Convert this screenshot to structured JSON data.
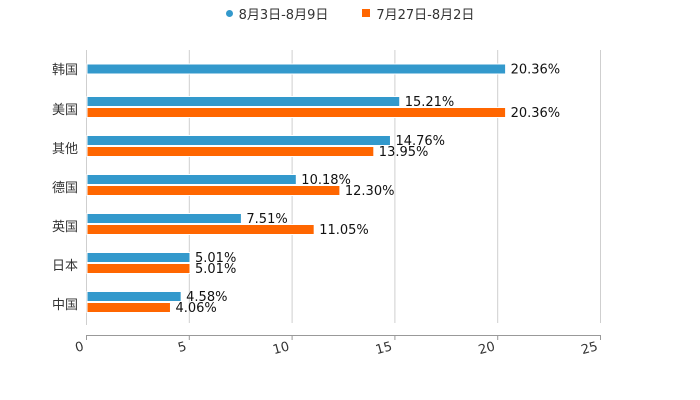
{
  "chart_data": {
    "type": "bar",
    "orientation": "horizontal",
    "categories": [
      "韩国",
      "美国",
      "其他",
      "德国",
      "英国",
      "日本",
      "中国"
    ],
    "series": [
      {
        "name": "8月3日-8月9日",
        "color": "#3399cc",
        "values": [
          20.36,
          15.21,
          14.76,
          10.18,
          7.51,
          5.01,
          4.58
        ],
        "labels": [
          "20.36%",
          "15.21%",
          "14.76%",
          "10.18%",
          "7.51%",
          "5.01%",
          "4.58%"
        ]
      },
      {
        "name": "7月27日-8月2日",
        "color": "#ff6600",
        "values": [
          null,
          20.36,
          13.95,
          12.3,
          11.05,
          5.01,
          4.06
        ],
        "labels": [
          "",
          "20.36%",
          "13.95%",
          "12.30%",
          "11.05%",
          "5.01%",
          "4.06%"
        ]
      }
    ],
    "xlim": [
      0,
      25
    ],
    "xticks": [
      0,
      5,
      10,
      15,
      20,
      25
    ],
    "xtick_labels": [
      "0",
      "5",
      "10",
      "15",
      "20",
      "25"
    ],
    "grid": true,
    "legend_position": "top-center",
    "title": "",
    "xlabel": "",
    "ylabel": ""
  }
}
